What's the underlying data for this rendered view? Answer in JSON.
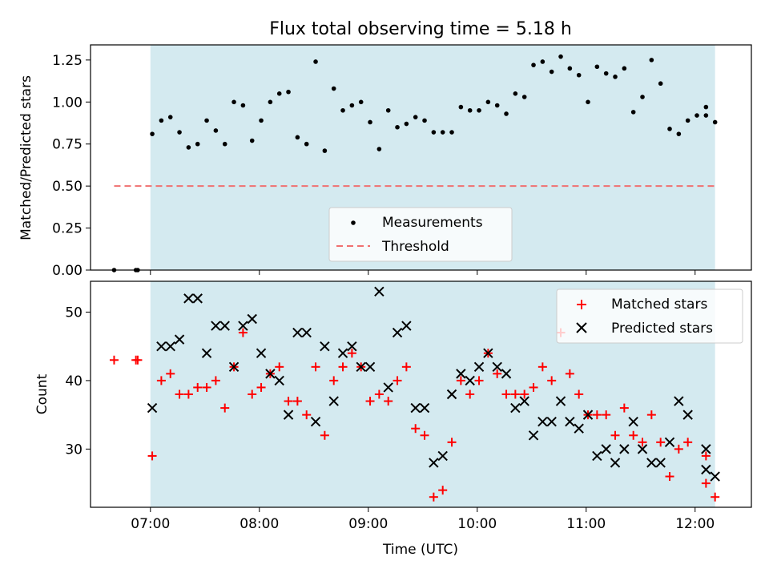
{
  "chart_data": [
    {
      "type": "scatter",
      "title": "Flux total observing time = 5.18 h",
      "xlabel": "",
      "ylabel": "Matched/Predicted stars",
      "xlim": [
        "06:27",
        "12:31"
      ],
      "ylim": [
        0,
        1.34
      ],
      "yticks": [
        0.0,
        0.25,
        0.5,
        0.75,
        1.0,
        1.25
      ],
      "ytick_labels": [
        "0.00",
        "0.25",
        "0.50",
        "0.75",
        "1.00",
        "1.25"
      ],
      "shaded_span": [
        "07:00",
        "12:11"
      ],
      "shade_color": "#d4eaf0",
      "legend_position": "lower-center",
      "series": [
        {
          "name": "Measurements",
          "marker": "dot",
          "color": "#000000",
          "x": [
            "06:40",
            "06:52",
            "06:53",
            "07:01",
            "07:06",
            "07:11",
            "07:16",
            "07:21",
            "07:26",
            "07:31",
            "07:36",
            "07:41",
            "07:46",
            "07:51",
            "07:56",
            "08:01",
            "08:06",
            "08:11",
            "08:16",
            "08:21",
            "08:26",
            "08:31",
            "08:36",
            "08:41",
            "08:46",
            "08:51",
            "08:56",
            "09:01",
            "09:06",
            "09:11",
            "09:16",
            "09:21",
            "09:26",
            "09:31",
            "09:36",
            "09:41",
            "09:46",
            "09:51",
            "09:56",
            "10:01",
            "10:06",
            "10:11",
            "10:16",
            "10:21",
            "10:26",
            "10:31",
            "10:36",
            "10:41",
            "10:46",
            "10:51",
            "10:56",
            "11:01",
            "11:06",
            "11:11",
            "11:16",
            "11:21",
            "11:26",
            "11:31",
            "11:36",
            "11:41",
            "11:46",
            "11:51",
            "11:56",
            "12:01",
            "12:06",
            "12:06",
            "12:11"
          ],
          "y": [
            0.0,
            0.0,
            0.0,
            0.81,
            0.89,
            0.91,
            0.82,
            0.73,
            0.75,
            0.89,
            0.83,
            0.75,
            1.0,
            0.98,
            0.77,
            0.89,
            1.0,
            1.05,
            1.06,
            0.79,
            0.75,
            1.24,
            0.71,
            1.08,
            0.95,
            0.98,
            1.0,
            0.88,
            0.72,
            0.95,
            0.85,
            0.87,
            0.91,
            0.89,
            0.82,
            0.82,
            0.82,
            0.97,
            0.95,
            0.95,
            1.0,
            0.98,
            0.93,
            1.05,
            1.03,
            1.22,
            1.24,
            1.18,
            1.27,
            1.2,
            1.16,
            1.0,
            1.21,
            1.17,
            1.15,
            1.2,
            0.94,
            1.03,
            1.25,
            1.11,
            0.84,
            0.81,
            0.89,
            0.92,
            0.97,
            0.92,
            0.88
          ]
        },
        {
          "name": "Threshold",
          "marker": "dashed-line",
          "color": "#f07070",
          "x": [
            "06:40",
            "12:11"
          ],
          "y": [
            0.5,
            0.5
          ]
        }
      ]
    },
    {
      "type": "scatter",
      "title": "",
      "xlabel": "Time (UTC)",
      "ylabel": "Count",
      "xlim": [
        "06:27",
        "12:31"
      ],
      "ylim": [
        21.5,
        54.5
      ],
      "yticks": [
        30,
        40,
        50
      ],
      "ytick_labels": [
        "30",
        "40",
        "50"
      ],
      "xticks": [
        "07:00",
        "08:00",
        "09:00",
        "10:00",
        "11:00",
        "12:00"
      ],
      "xtick_labels": [
        "07:00",
        "08:00",
        "09:00",
        "10:00",
        "11:00",
        "12:00"
      ],
      "shaded_span": [
        "07:00",
        "12:11"
      ],
      "shade_color": "#d4eaf0",
      "legend_position": "upper-right",
      "series": [
        {
          "name": "Matched stars",
          "marker": "plus",
          "color": "#ff0000",
          "x": [
            "06:40",
            "06:52",
            "06:53",
            "07:01",
            "07:06",
            "07:11",
            "07:16",
            "07:21",
            "07:26",
            "07:31",
            "07:36",
            "07:41",
            "07:46",
            "07:51",
            "07:56",
            "08:01",
            "08:06",
            "08:11",
            "08:16",
            "08:21",
            "08:26",
            "08:31",
            "08:36",
            "08:41",
            "08:46",
            "08:51",
            "08:56",
            "09:01",
            "09:06",
            "09:11",
            "09:16",
            "09:21",
            "09:26",
            "09:31",
            "09:36",
            "09:41",
            "09:46",
            "09:51",
            "09:56",
            "10:01",
            "10:06",
            "10:11",
            "10:16",
            "10:21",
            "10:26",
            "10:31",
            "10:36",
            "10:41",
            "10:46",
            "10:51",
            "10:56",
            "11:01",
            "11:06",
            "11:11",
            "11:16",
            "11:21",
            "11:26",
            "11:31",
            "11:36",
            "11:41",
            "11:46",
            "11:51",
            "11:56",
            "12:06",
            "12:06",
            "12:11"
          ],
          "y": [
            43,
            43,
            43,
            29,
            40,
            41,
            38,
            38,
            39,
            39,
            40,
            36,
            42,
            47,
            38,
            39,
            41,
            42,
            37,
            37,
            35,
            42,
            32,
            40,
            42,
            44,
            42,
            37,
            38,
            37,
            40,
            42,
            33,
            32,
            23,
            24,
            31,
            40,
            38,
            40,
            44,
            41,
            38,
            38,
            38,
            39,
            42,
            40,
            47,
            41,
            38,
            35,
            35,
            35,
            32,
            36,
            32,
            31,
            35,
            31,
            26,
            30,
            31,
            25,
            29,
            23
          ]
        },
        {
          "name": "Predicted stars",
          "marker": "x",
          "color": "#000000",
          "x": [
            "07:01",
            "07:06",
            "07:11",
            "07:16",
            "07:21",
            "07:26",
            "07:31",
            "07:36",
            "07:41",
            "07:46",
            "07:51",
            "07:56",
            "08:01",
            "08:06",
            "08:11",
            "08:16",
            "08:21",
            "08:26",
            "08:31",
            "08:36",
            "08:41",
            "08:46",
            "08:51",
            "08:56",
            "09:01",
            "09:06",
            "09:11",
            "09:16",
            "09:21",
            "09:26",
            "09:31",
            "09:36",
            "09:41",
            "09:46",
            "09:51",
            "09:56",
            "10:01",
            "10:06",
            "10:11",
            "10:16",
            "10:21",
            "10:26",
            "10:31",
            "10:36",
            "10:41",
            "10:46",
            "10:51",
            "10:56",
            "11:01",
            "11:06",
            "11:11",
            "11:16",
            "11:21",
            "11:26",
            "11:31",
            "11:36",
            "11:41",
            "11:46",
            "11:51",
            "11:56",
            "12:06",
            "12:06",
            "12:11"
          ],
          "y": [
            36,
            45,
            45,
            46,
            52,
            52,
            44,
            48,
            48,
            42,
            48,
            49,
            44,
            41,
            40,
            35,
            47,
            47,
            34,
            45,
            37,
            44,
            45,
            42,
            42,
            53,
            39,
            47,
            48,
            36,
            36,
            28,
            29,
            38,
            41,
            40,
            42,
            44,
            42,
            41,
            36,
            37,
            32,
            34,
            34,
            37,
            34,
            33,
            35,
            29,
            30,
            28,
            30,
            34,
            30,
            28,
            28,
            31,
            37,
            35,
            30,
            27,
            26
          ]
        }
      ]
    }
  ]
}
